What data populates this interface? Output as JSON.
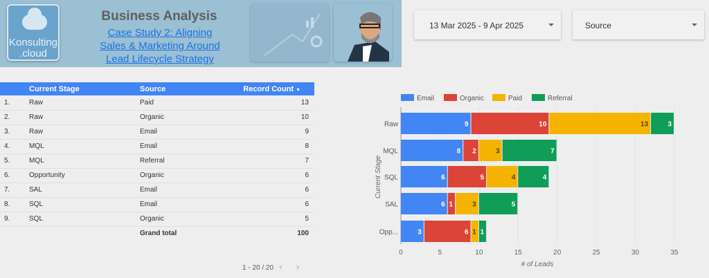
{
  "header": {
    "logo_text": "Konsulting .cloud",
    "title": "Business Analysis",
    "link_lines": [
      "Case Study 2: Aligning",
      "Sales & Marketing Around",
      "Lead Lifecycle Strategy"
    ]
  },
  "controls": {
    "date_range": "13 Mar 2025 - 9 Apr 2025",
    "source_placeholder": "Source"
  },
  "table": {
    "columns": [
      "Current Stage",
      "Source",
      "Record Count"
    ],
    "rows": [
      [
        "1.",
        "Raw",
        "Paid",
        "13"
      ],
      [
        "2.",
        "Raw",
        "Organic",
        "10"
      ],
      [
        "3.",
        "Raw",
        "Email",
        "9"
      ],
      [
        "4.",
        "MQL",
        "Email",
        "8"
      ],
      [
        "5.",
        "MQL",
        "Referral",
        "7"
      ],
      [
        "6.",
        "Opportunity",
        "Organic",
        "6"
      ],
      [
        "7.",
        "SAL",
        "Email",
        "6"
      ],
      [
        "8.",
        "SQL",
        "Email",
        "6"
      ],
      [
        "9.",
        "SQL",
        "Organic",
        "5"
      ]
    ],
    "grand_total_label": "Grand total",
    "grand_total": "100",
    "pagination": "1 - 20 / 20"
  },
  "chart_data": {
    "type": "bar",
    "orientation": "horizontal",
    "stacked": true,
    "categories": [
      "Raw",
      "MQL",
      "SQL",
      "SAL",
      "Opp..."
    ],
    "series": [
      {
        "name": "Email",
        "color": "#4285f4",
        "values": [
          9,
          8,
          6,
          6,
          3
        ]
      },
      {
        "name": "Organic",
        "color": "#db4437",
        "values": [
          10,
          2,
          5,
          1,
          6
        ]
      },
      {
        "name": "Paid",
        "color": "#f4b400",
        "values": [
          13,
          3,
          4,
          3,
          1
        ]
      },
      {
        "name": "Referral",
        "color": "#0f9d58",
        "values": [
          3,
          7,
          4,
          5,
          1
        ]
      }
    ],
    "xlabel": "# of Leads",
    "ylabel": "Current Stage",
    "xlim": [
      0,
      35
    ],
    "xticks": [
      0,
      5,
      10,
      15,
      20,
      25,
      30,
      35
    ],
    "legend": "top"
  }
}
